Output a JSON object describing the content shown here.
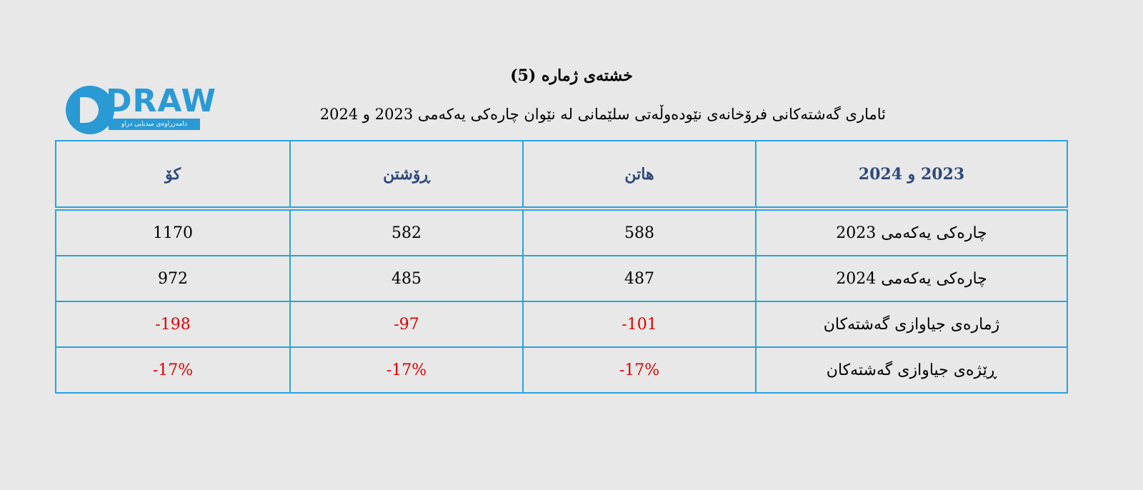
{
  "title": "خشتەی ژمارە (5)",
  "subtitle": "ئاماری گەشتەکانی فرۆخانەی نێودەوڵەتی سلێمانی لە نێوان چارەکی یەکەمی 2023 و 2024",
  "logo": {
    "text": "DRAW",
    "subtext": "دامەزراوەی میدیایی دراو"
  },
  "colors": {
    "border": "#2aa3dd",
    "header_text": "#2e4a78",
    "negative": "#e00000",
    "background": "#e8e8e8"
  },
  "table": {
    "headers": [
      "2023 و 2024",
      "هاتن",
      "ڕۆشتن",
      "کۆ"
    ],
    "rows": [
      {
        "label": "چارەکی یەکەمی 2023",
        "arrival": "588",
        "departure": "582",
        "total": "1170"
      },
      {
        "label": "چارەکی یەکەمی 2024",
        "arrival": "487",
        "departure": "485",
        "total": "972"
      },
      {
        "label": "ژمارەی جیاوازی گەشتەکان",
        "arrival": "-101",
        "departure": "-97",
        "total": "-198"
      },
      {
        "label": "ڕێژەی جیاوازی گەشتەکان",
        "arrival": "-17%",
        "departure": "-17%",
        "total": "-17%"
      }
    ]
  }
}
